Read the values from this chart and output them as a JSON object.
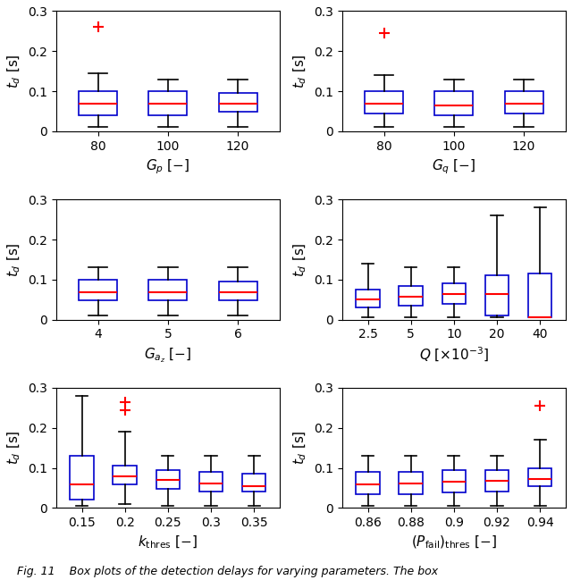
{
  "subplots": [
    {
      "xlabel": "$G_p\\ [-]$",
      "xtick_labels": [
        "80",
        "100",
        "120"
      ],
      "positions": [
        1,
        2,
        3
      ],
      "real_labels": [
        "80",
        "100",
        "120"
      ],
      "boxes": [
        {
          "q1": 0.04,
          "median": 0.068,
          "q3": 0.1,
          "whislo": 0.01,
          "whishi": 0.145,
          "fliers": [
            0.26
          ]
        },
        {
          "q1": 0.04,
          "median": 0.068,
          "q3": 0.1,
          "whislo": 0.01,
          "whishi": 0.13,
          "fliers": []
        },
        {
          "q1": 0.05,
          "median": 0.068,
          "q3": 0.095,
          "whislo": 0.01,
          "whishi": 0.13,
          "fliers": []
        }
      ],
      "ylim": [
        0,
        0.3
      ],
      "yticks": [
        0,
        0.1,
        0.2,
        0.3
      ]
    },
    {
      "xlabel": "$G_q\\ [-]$",
      "xtick_labels": [
        "80",
        "100",
        "120"
      ],
      "positions": [
        1,
        2,
        3
      ],
      "real_labels": [
        "80",
        "100",
        "120"
      ],
      "boxes": [
        {
          "q1": 0.045,
          "median": 0.068,
          "q3": 0.1,
          "whislo": 0.01,
          "whishi": 0.14,
          "fliers": [
            0.245
          ]
        },
        {
          "q1": 0.04,
          "median": 0.065,
          "q3": 0.1,
          "whislo": 0.01,
          "whishi": 0.13,
          "fliers": []
        },
        {
          "q1": 0.045,
          "median": 0.068,
          "q3": 0.1,
          "whislo": 0.01,
          "whishi": 0.13,
          "fliers": []
        }
      ],
      "ylim": [
        0,
        0.3
      ],
      "yticks": [
        0,
        0.1,
        0.2,
        0.3
      ]
    },
    {
      "xlabel": "$G_{a_z}\\ [-]$",
      "xtick_labels": [
        "4",
        "5",
        "6"
      ],
      "positions": [
        1,
        2,
        3
      ],
      "real_labels": [
        "4",
        "5",
        "6"
      ],
      "boxes": [
        {
          "q1": 0.048,
          "median": 0.068,
          "q3": 0.1,
          "whislo": 0.01,
          "whishi": 0.13,
          "fliers": []
        },
        {
          "q1": 0.048,
          "median": 0.068,
          "q3": 0.1,
          "whislo": 0.01,
          "whishi": 0.13,
          "fliers": []
        },
        {
          "q1": 0.048,
          "median": 0.068,
          "q3": 0.095,
          "whislo": 0.01,
          "whishi": 0.13,
          "fliers": []
        }
      ],
      "ylim": [
        0,
        0.3
      ],
      "yticks": [
        0,
        0.1,
        0.2,
        0.3
      ]
    },
    {
      "xlabel": "$Q\\ [\\times10^{-3}]$",
      "xtick_labels": [
        "2.5",
        "5",
        "10",
        "20",
        "40"
      ],
      "positions": [
        1,
        2,
        3,
        4,
        5
      ],
      "real_labels": [
        "2.5",
        "5",
        "10",
        "20",
        "40"
      ],
      "boxes": [
        {
          "q1": 0.03,
          "median": 0.05,
          "q3": 0.075,
          "whislo": 0.005,
          "whishi": 0.14,
          "fliers": []
        },
        {
          "q1": 0.035,
          "median": 0.058,
          "q3": 0.085,
          "whislo": 0.005,
          "whishi": 0.13,
          "fliers": []
        },
        {
          "q1": 0.04,
          "median": 0.065,
          "q3": 0.09,
          "whislo": 0.005,
          "whishi": 0.13,
          "fliers": []
        },
        {
          "q1": 0.01,
          "median": 0.065,
          "q3": 0.11,
          "whislo": 0.005,
          "whishi": 0.26,
          "fliers": []
        },
        {
          "q1": 0.005,
          "median": 0.005,
          "q3": 0.115,
          "whislo": 0.005,
          "whishi": 0.28,
          "fliers": []
        }
      ],
      "ylim": [
        0,
        0.3
      ],
      "yticks": [
        0,
        0.1,
        0.2,
        0.3
      ]
    },
    {
      "xlabel": "$k_{\\mathrm{thres}}\\ [-]$",
      "xtick_labels": [
        "0.15",
        "0.2",
        "0.25",
        "0.3",
        "0.35"
      ],
      "positions": [
        1,
        2,
        3,
        4,
        5
      ],
      "real_labels": [
        "0.15",
        "0.2",
        "0.25",
        "0.3",
        "0.35"
      ],
      "boxes": [
        {
          "q1": 0.02,
          "median": 0.06,
          "q3": 0.13,
          "whislo": 0.005,
          "whishi": 0.28,
          "fliers": []
        },
        {
          "q1": 0.06,
          "median": 0.08,
          "q3": 0.105,
          "whislo": 0.01,
          "whishi": 0.19,
          "fliers": [
            0.245,
            0.265
          ]
        },
        {
          "q1": 0.048,
          "median": 0.07,
          "q3": 0.095,
          "whislo": 0.005,
          "whishi": 0.13,
          "fliers": []
        },
        {
          "q1": 0.04,
          "median": 0.062,
          "q3": 0.09,
          "whislo": 0.005,
          "whishi": 0.13,
          "fliers": []
        },
        {
          "q1": 0.04,
          "median": 0.055,
          "q3": 0.085,
          "whislo": 0.005,
          "whishi": 0.13,
          "fliers": []
        }
      ],
      "ylim": [
        0,
        0.3
      ],
      "yticks": [
        0,
        0.1,
        0.2,
        0.3
      ]
    },
    {
      "xlabel": "$(P_{\\mathrm{fail}})_{\\mathrm{thres}}\\ [-]$",
      "xtick_labels": [
        "0.86",
        "0.88",
        "0.9",
        "0.92",
        "0.94"
      ],
      "positions": [
        1,
        2,
        3,
        4,
        5
      ],
      "real_labels": [
        "0.86",
        "0.88",
        "0.9",
        "0.92",
        "0.94"
      ],
      "boxes": [
        {
          "q1": 0.035,
          "median": 0.06,
          "q3": 0.09,
          "whislo": 0.005,
          "whishi": 0.13,
          "fliers": []
        },
        {
          "q1": 0.035,
          "median": 0.062,
          "q3": 0.09,
          "whislo": 0.005,
          "whishi": 0.13,
          "fliers": []
        },
        {
          "q1": 0.038,
          "median": 0.065,
          "q3": 0.095,
          "whislo": 0.005,
          "whishi": 0.13,
          "fliers": []
        },
        {
          "q1": 0.042,
          "median": 0.068,
          "q3": 0.095,
          "whislo": 0.005,
          "whishi": 0.13,
          "fliers": []
        },
        {
          "q1": 0.055,
          "median": 0.072,
          "q3": 0.1,
          "whislo": 0.005,
          "whishi": 0.17,
          "fliers": [
            0.255
          ]
        }
      ],
      "ylim": [
        0,
        0.3
      ],
      "yticks": [
        0,
        0.1,
        0.2,
        0.3
      ]
    }
  ],
  "ylabel": "$t_d$ [s]",
  "box_edge_color": "#0000CC",
  "median_color": "#FF0000",
  "flier_color": "#FF0000",
  "whisker_color": "#000000",
  "cap_color": "#000000",
  "box_width": 0.55,
  "figsize": [
    6.4,
    6.49
  ],
  "dpi": 100,
  "caption": "Fig. 11    Box plots of the detection delays for varying parameters. The box"
}
